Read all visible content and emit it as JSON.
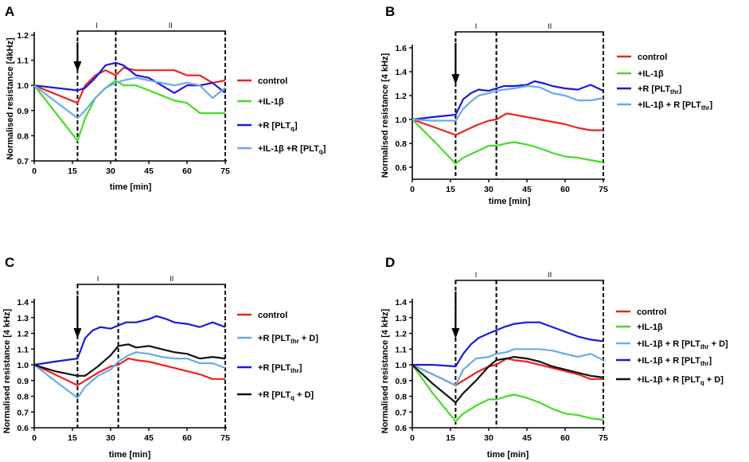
{
  "colors": {
    "red": "#ee2222",
    "green": "#44dd22",
    "blue": "#1a1adb",
    "lightblue": "#6aaae8",
    "black": "#111111"
  },
  "chart_data": [
    {
      "panel": "A",
      "type": "line",
      "xlabel": "time [min]",
      "ylabel": "Normalised resistance [4kHz]",
      "xlim": [
        0,
        75
      ],
      "ylim": [
        0.7,
        1.2
      ],
      "xticks": [
        0,
        15,
        30,
        45,
        60,
        75
      ],
      "yticks": [
        0.7,
        0.8,
        0.9,
        1.0,
        1.1,
        1.2
      ],
      "xtick_labels": [
        "0",
        "15",
        "30",
        "45",
        "60",
        "75"
      ],
      "ytick_labels": [
        "0.7",
        "0.8",
        "0.9",
        "1.0",
        "1.1",
        "1.2"
      ],
      "phases": [
        {
          "label": "I",
          "start": 17,
          "end": 32
        },
        {
          "label": "II",
          "start": 32,
          "end": 75
        }
      ],
      "arrow_at": 17,
      "series": [
        {
          "name": "control",
          "legend": [
            {
              "t": "control"
            }
          ],
          "color": "red",
          "x": [
            0,
            17,
            20,
            24,
            28,
            30,
            32,
            35,
            40,
            45,
            50,
            55,
            60,
            65,
            70,
            75
          ],
          "y": [
            1.0,
            0.93,
            1.0,
            1.04,
            1.06,
            1.05,
            1.04,
            1.07,
            1.06,
            1.06,
            1.06,
            1.06,
            1.04,
            1.04,
            1.01,
            1.02
          ]
        },
        {
          "name": "+IL-1β",
          "legend": [
            {
              "t": "+IL-1β"
            }
          ],
          "color": "green",
          "x": [
            0,
            17,
            20,
            24,
            28,
            32,
            35,
            40,
            45,
            50,
            55,
            60,
            65,
            70,
            75
          ],
          "y": [
            1.0,
            0.78,
            0.87,
            0.95,
            0.99,
            1.02,
            1.0,
            1.0,
            0.98,
            0.96,
            0.94,
            0.93,
            0.89,
            0.89,
            0.89
          ]
        },
        {
          "name": "+R [PLTq]",
          "legend": [
            {
              "t": "+R [PLT"
            },
            {
              "t": "q",
              "sub": true
            },
            {
              "t": "]"
            }
          ],
          "color": "blue",
          "x": [
            0,
            17,
            20,
            24,
            28,
            32,
            35,
            40,
            45,
            50,
            55,
            60,
            65,
            70,
            75
          ],
          "y": [
            1.0,
            0.98,
            0.99,
            1.03,
            1.08,
            1.09,
            1.08,
            1.04,
            1.03,
            1.0,
            0.97,
            1.0,
            1.0,
            1.01,
            0.97
          ]
        },
        {
          "name": "+IL-1β +R [PLTq]",
          "legend": [
            {
              "t": "+IL-1β +R [PLT"
            },
            {
              "t": "q",
              "sub": true
            },
            {
              "t": "]"
            }
          ],
          "color": "lightblue",
          "x": [
            0,
            17,
            20,
            24,
            28,
            32,
            35,
            40,
            45,
            50,
            55,
            60,
            65,
            70,
            75
          ],
          "y": [
            1.0,
            0.87,
            0.9,
            0.95,
            0.99,
            1.01,
            1.02,
            1.03,
            1.02,
            1.01,
            1.0,
            1.01,
            1.0,
            0.95,
            0.99
          ]
        }
      ]
    },
    {
      "panel": "B",
      "type": "line",
      "xlabel": "time [min]",
      "ylabel": "Normalised resistance [4 kHz]",
      "xlim": [
        0,
        75
      ],
      "ylim": [
        0.5,
        1.6
      ],
      "xticks": [
        0,
        15,
        30,
        45,
        60,
        75
      ],
      "yticks": [
        0.6,
        0.8,
        1.0,
        1.2,
        1.4,
        1.6
      ],
      "xtick_labels": [
        "0",
        "15",
        "30",
        "45",
        "60",
        "75"
      ],
      "ytick_labels": [
        "0.6",
        "0.8",
        "1.0",
        "1.2",
        "1.4",
        "1.6"
      ],
      "phases": [
        {
          "label": "I",
          "start": 17,
          "end": 33
        },
        {
          "label": "II",
          "start": 33,
          "end": 75
        }
      ],
      "arrow_at": 17,
      "series": [
        {
          "name": "control",
          "legend": [
            {
              "t": "control"
            }
          ],
          "color": "red",
          "x": [
            0,
            8,
            17,
            20,
            25,
            30,
            33,
            37,
            40,
            45,
            50,
            55,
            60,
            65,
            70,
            75
          ],
          "y": [
            1.0,
            0.94,
            0.87,
            0.9,
            0.95,
            0.99,
            1.0,
            1.05,
            1.04,
            1.02,
            1.0,
            0.98,
            0.96,
            0.93,
            0.91,
            0.91
          ]
        },
        {
          "name": "+IL-1β",
          "legend": [
            {
              "t": "+IL-1β"
            }
          ],
          "color": "green",
          "x": [
            0,
            8,
            17,
            20,
            25,
            30,
            33,
            37,
            40,
            45,
            50,
            55,
            60,
            65,
            70,
            75
          ],
          "y": [
            1.0,
            0.83,
            0.63,
            0.68,
            0.73,
            0.78,
            0.78,
            0.8,
            0.81,
            0.79,
            0.76,
            0.72,
            0.69,
            0.68,
            0.66,
            0.64
          ]
        },
        {
          "name": "+R [PLTthr]",
          "legend": [
            {
              "t": "+R [PLT"
            },
            {
              "t": "thr",
              "sub": true
            },
            {
              "t": "]"
            }
          ],
          "color": "blue",
          "x": [
            0,
            8,
            17,
            20,
            23,
            26,
            30,
            33,
            36,
            40,
            45,
            48,
            52,
            55,
            60,
            65,
            70,
            75
          ],
          "y": [
            1.0,
            1.02,
            1.04,
            1.17,
            1.22,
            1.25,
            1.24,
            1.26,
            1.28,
            1.28,
            1.29,
            1.32,
            1.3,
            1.28,
            1.26,
            1.25,
            1.29,
            1.24
          ]
        },
        {
          "name": "+IL-1β + R [PLTthr]",
          "legend": [
            {
              "t": "+IL-1β + R [PLT"
            },
            {
              "t": "thr",
              "sub": true
            },
            {
              "t": "]"
            }
          ],
          "color": "lightblue",
          "x": [
            0,
            8,
            17,
            20,
            23,
            26,
            30,
            33,
            36,
            40,
            45,
            50,
            55,
            60,
            65,
            70,
            75
          ],
          "y": [
            1.0,
            0.99,
            0.99,
            1.09,
            1.15,
            1.2,
            1.22,
            1.24,
            1.25,
            1.26,
            1.28,
            1.27,
            1.22,
            1.2,
            1.16,
            1.16,
            1.18
          ]
        }
      ]
    },
    {
      "panel": "C",
      "type": "line",
      "xlabel": "time [min]",
      "ylabel": "Normalised resistance [4 kHz]",
      "xlim": [
        0,
        75
      ],
      "ylim": [
        0.6,
        1.4
      ],
      "xticks": [
        0,
        15,
        30,
        45,
        60,
        75
      ],
      "yticks": [
        0.6,
        0.7,
        0.8,
        0.9,
        1.0,
        1.1,
        1.2,
        1.3,
        1.4
      ],
      "xtick_labels": [
        "0",
        "15",
        "30",
        "45",
        "60",
        "75"
      ],
      "ytick_labels": [
        "0.6",
        "0.7",
        "0.8",
        "0.9",
        "1.0",
        "1.1",
        "1.2",
        "1.3",
        "1.4"
      ],
      "phases": [
        {
          "label": "I",
          "start": 17,
          "end": 33
        },
        {
          "label": "II",
          "start": 33,
          "end": 75
        }
      ],
      "arrow_at": 17,
      "series": [
        {
          "name": "control",
          "legend": [
            {
              "t": "control"
            }
          ],
          "color": "red",
          "x": [
            0,
            8,
            17,
            20,
            25,
            30,
            33,
            37,
            40,
            45,
            50,
            55,
            60,
            65,
            70,
            75
          ],
          "y": [
            1.0,
            0.94,
            0.87,
            0.9,
            0.95,
            0.99,
            1.0,
            1.04,
            1.03,
            1.02,
            1.0,
            0.98,
            0.96,
            0.94,
            0.91,
            0.91
          ]
        },
        {
          "name": "+R [PLTthr + D]",
          "legend": [
            {
              "t": "+R [PLT"
            },
            {
              "t": "thr",
              "sub": true
            },
            {
              "t": " + D]"
            }
          ],
          "color": "lightblue",
          "x": [
            0,
            8,
            17,
            20,
            25,
            30,
            33,
            37,
            40,
            45,
            50,
            55,
            60,
            65,
            70,
            75
          ],
          "y": [
            1.0,
            0.9,
            0.79,
            0.86,
            0.93,
            0.97,
            1.02,
            1.06,
            1.08,
            1.07,
            1.05,
            1.04,
            1.04,
            1.01,
            1.01,
            0.98
          ]
        },
        {
          "name": "+R [PLTthr]",
          "legend": [
            {
              "t": "+R [PLT"
            },
            {
              "t": "thr",
              "sub": true
            },
            {
              "t": "]"
            }
          ],
          "color": "blue",
          "x": [
            0,
            8,
            17,
            20,
            23,
            26,
            30,
            33,
            36,
            40,
            45,
            48,
            52,
            55,
            60,
            65,
            70,
            75
          ],
          "y": [
            1.0,
            1.02,
            1.04,
            1.17,
            1.22,
            1.24,
            1.23,
            1.25,
            1.27,
            1.27,
            1.29,
            1.31,
            1.29,
            1.27,
            1.26,
            1.24,
            1.27,
            1.24
          ]
        },
        {
          "name": "+R [PLTq + D]",
          "legend": [
            {
              "t": "+R [PLT"
            },
            {
              "t": "q",
              "sub": true
            },
            {
              "t": " + D]"
            }
          ],
          "color": "black",
          "x": [
            0,
            8,
            17,
            20,
            25,
            30,
            33,
            37,
            40,
            45,
            50,
            55,
            60,
            65,
            70,
            75
          ],
          "y": [
            1.0,
            0.96,
            0.93,
            0.93,
            0.99,
            1.06,
            1.12,
            1.13,
            1.11,
            1.12,
            1.1,
            1.08,
            1.07,
            1.04,
            1.05,
            1.04
          ]
        }
      ]
    },
    {
      "panel": "D",
      "type": "line",
      "xlabel": "time [min]",
      "ylabel": "Normalised resistance [4 kHz]",
      "xlim": [
        0,
        75
      ],
      "ylim": [
        0.6,
        1.4
      ],
      "xticks": [
        0,
        15,
        30,
        45,
        60,
        75
      ],
      "yticks": [
        0.6,
        0.7,
        0.8,
        0.9,
        1.0,
        1.1,
        1.2,
        1.3,
        1.4
      ],
      "xtick_labels": [
        "0",
        "15",
        "30",
        "45",
        "60",
        "75"
      ],
      "ytick_labels": [
        "0.6",
        "0.7",
        "0.8",
        "0.9",
        "1.0",
        "1.1",
        "1.2",
        "1.3",
        "1.4"
      ],
      "phases": [
        {
          "label": "I",
          "start": 17,
          "end": 33
        },
        {
          "label": "II",
          "start": 33,
          "end": 75
        }
      ],
      "arrow_at": 17,
      "series": [
        {
          "name": "control",
          "legend": [
            {
              "t": "control"
            }
          ],
          "color": "red",
          "x": [
            0,
            8,
            17,
            20,
            25,
            30,
            33,
            37,
            40,
            45,
            50,
            55,
            60,
            65,
            70,
            75
          ],
          "y": [
            1.0,
            0.94,
            0.87,
            0.9,
            0.95,
            0.99,
            1.0,
            1.04,
            1.03,
            1.02,
            1.0,
            0.98,
            0.96,
            0.94,
            0.91,
            0.91
          ]
        },
        {
          "name": "+IL-1β",
          "legend": [
            {
              "t": "+IL-1β"
            }
          ],
          "color": "green",
          "x": [
            0,
            8,
            17,
            20,
            25,
            30,
            33,
            37,
            40,
            45,
            50,
            55,
            60,
            65,
            70,
            75
          ],
          "y": [
            1.0,
            0.82,
            0.64,
            0.69,
            0.74,
            0.78,
            0.78,
            0.8,
            0.81,
            0.79,
            0.76,
            0.72,
            0.69,
            0.68,
            0.66,
            0.65
          ]
        },
        {
          "name": "+IL-1β + R [PLTthr + D]",
          "legend": [
            {
              "t": "+IL-1β + R [PLT"
            },
            {
              "t": "thr",
              "sub": true
            },
            {
              "t": " + D]"
            }
          ],
          "color": "lightblue",
          "x": [
            0,
            8,
            17,
            20,
            25,
            30,
            33,
            37,
            40,
            45,
            50,
            55,
            60,
            65,
            70,
            75
          ],
          "y": [
            1.0,
            0.94,
            0.87,
            0.97,
            1.04,
            1.05,
            1.07,
            1.08,
            1.1,
            1.1,
            1.1,
            1.09,
            1.07,
            1.05,
            1.07,
            1.03
          ]
        },
        {
          "name": "+IL-1β + R [PLTthr]",
          "legend": [
            {
              "t": "+IL-1β + R [PLT"
            },
            {
              "t": "thr",
              "sub": true
            },
            {
              "t": "]"
            }
          ],
          "color": "blue",
          "x": [
            0,
            8,
            17,
            20,
            23,
            26,
            30,
            33,
            36,
            40,
            45,
            50,
            55,
            60,
            65,
            70,
            75
          ],
          "y": [
            1.0,
            1.0,
            0.99,
            1.07,
            1.13,
            1.17,
            1.2,
            1.22,
            1.24,
            1.26,
            1.27,
            1.27,
            1.24,
            1.21,
            1.18,
            1.16,
            1.15
          ]
        },
        {
          "name": "+IL-1β + R [PLTq + D]",
          "legend": [
            {
              "t": "+IL-1β + R [PLT"
            },
            {
              "t": "q",
              "sub": true
            },
            {
              "t": " + D]"
            }
          ],
          "color": "black",
          "x": [
            0,
            8,
            17,
            20,
            25,
            30,
            33,
            37,
            40,
            45,
            50,
            55,
            60,
            65,
            70,
            75
          ],
          "y": [
            1.0,
            0.88,
            0.76,
            0.82,
            0.9,
            0.99,
            1.03,
            1.04,
            1.05,
            1.04,
            1.02,
            0.99,
            0.97,
            0.95,
            0.93,
            0.92
          ]
        }
      ]
    }
  ]
}
